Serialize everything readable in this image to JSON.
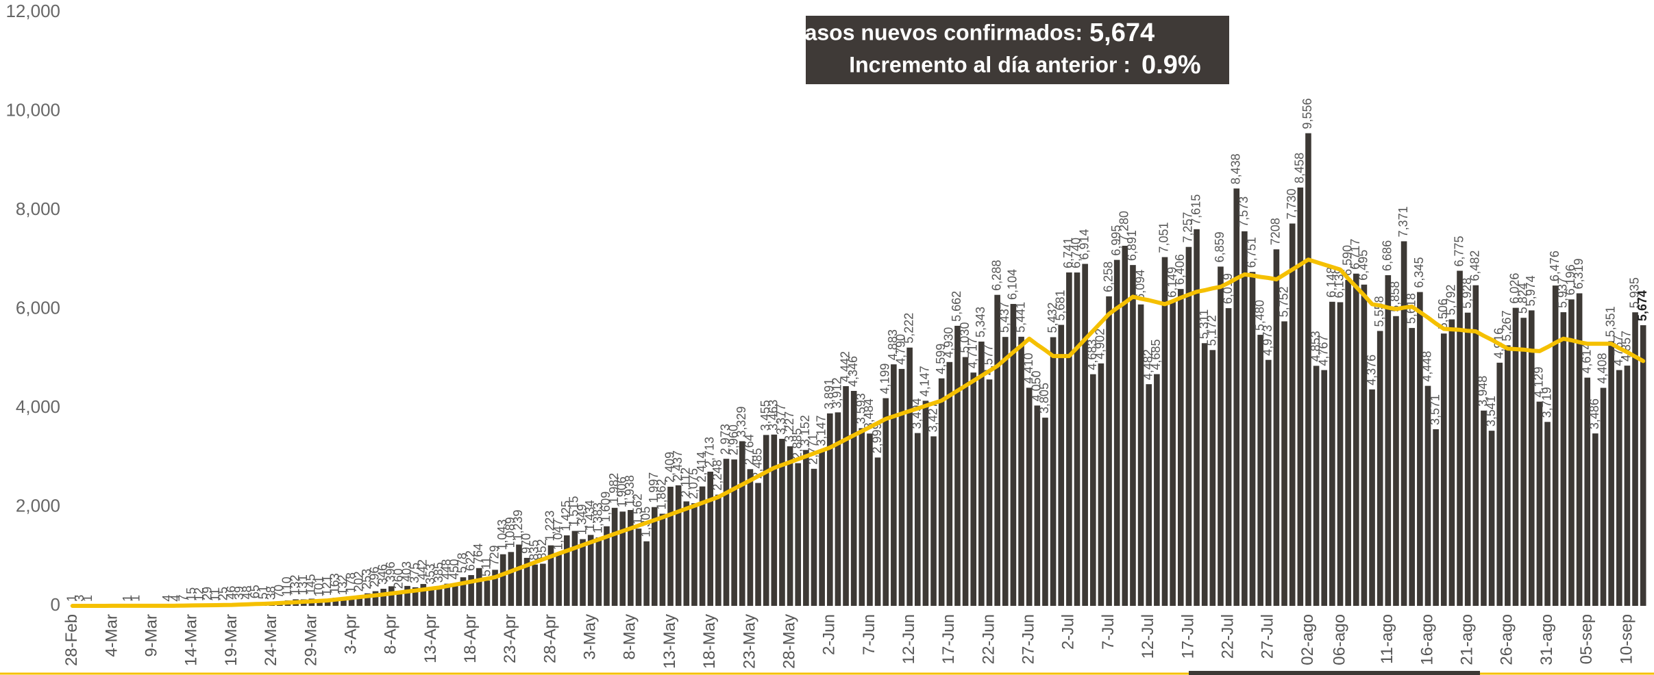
{
  "chart_data": {
    "type": "bar",
    "annotation": {
      "label1": "Casos nuevos confirmados:",
      "value1": "5,674",
      "label2": "Incremento al día anterior :",
      "value2": "0.9%"
    },
    "categories": [
      "28-Feb",
      null,
      null,
      null,
      null,
      "4-Mar",
      null,
      null,
      null,
      null,
      "9-Mar",
      null,
      null,
      null,
      null,
      "14-Mar",
      null,
      null,
      null,
      null,
      "19-Mar",
      null,
      null,
      null,
      null,
      "24-Mar",
      null,
      null,
      null,
      null,
      "29-Mar",
      null,
      null,
      null,
      null,
      "3-Apr",
      null,
      null,
      null,
      null,
      "8-Apr",
      null,
      null,
      null,
      null,
      "13-Apr",
      null,
      null,
      null,
      null,
      "18-Apr",
      null,
      null,
      null,
      null,
      "23-Apr",
      null,
      null,
      null,
      null,
      "28-Apr",
      null,
      null,
      null,
      null,
      "3-May",
      null,
      null,
      null,
      null,
      "8-May",
      null,
      null,
      null,
      null,
      "13-May",
      null,
      null,
      null,
      null,
      "18-May",
      null,
      null,
      null,
      null,
      "23-May",
      null,
      null,
      null,
      null,
      "28-May",
      null,
      null,
      null,
      null,
      "2-Jun",
      null,
      null,
      null,
      null,
      "7-Jun",
      null,
      null,
      null,
      null,
      "12-Jun",
      null,
      null,
      null,
      null,
      "17-Jun",
      null,
      null,
      null,
      null,
      "22-Jun",
      null,
      null,
      null,
      null,
      "27-Jun",
      null,
      null,
      null,
      null,
      "2-Jul",
      null,
      null,
      null,
      null,
      "7-Jul",
      null,
      null,
      null,
      null,
      "12-Jul",
      null,
      null,
      null,
      null,
      "17-Jul",
      null,
      null,
      null,
      null,
      "22-Jul",
      null,
      null,
      null,
      null,
      "27-Jul",
      null,
      null,
      null,
      null,
      "02-ago",
      null,
      null,
      null,
      "06-ago",
      null,
      null,
      null,
      null,
      null,
      "11-ago",
      null,
      null,
      null,
      null,
      "16-ago",
      null,
      null,
      null,
      null,
      "21-ago",
      null,
      null,
      null,
      null,
      "26-ago",
      null,
      null,
      null,
      null,
      "31-ago",
      null,
      null,
      null,
      null,
      "05-sep",
      null,
      null,
      null,
      null,
      "10-sep",
      null,
      null
    ],
    "series": [
      {
        "type": "bar",
        "color": "#3d3935",
        "values": [
          1,
          3,
          1,
          0,
          0,
          0,
          0,
          1,
          1,
          0,
          0,
          0,
          4,
          4,
          7,
          15,
          12,
          29,
          11,
          25,
          46,
          39,
          48,
          65,
          51,
          38,
          70,
          110,
          132,
          131,
          145,
          101,
          121,
          163,
          132,
          178,
          202,
          253,
          296,
          346,
          396,
          260,
          403,
          375,
          442,
          353,
          385,
          448,
          450,
          578,
          622,
          764,
          511,
          729,
          1043,
          1089,
          1239,
          970,
          835,
          852,
          1223,
          1047,
          1425,
          1515,
          1349,
          1434,
          1383,
          1609,
          1982,
          1906,
          1938,
          1562,
          1305,
          1997,
          1862,
          2409,
          2437,
          2112,
          2075,
          2414,
          2713,
          2248,
          2973,
          2960,
          3329,
          2764,
          2485,
          3455,
          3463,
          3377,
          3227,
          2885,
          3152,
          2771,
          3147,
          3891,
          3912,
          4442,
          4346,
          3593,
          3484,
          2999,
          4199,
          4883,
          4790,
          5222,
          3494,
          4147,
          3427,
          4599,
          4930,
          5662,
          5030,
          4717,
          5343,
          4577,
          6288,
          5437,
          6104,
          5441,
          4410,
          4050,
          3805,
          5432,
          5681,
          6741,
          6740,
          6914,
          4683,
          4902,
          6258,
          6995,
          7280,
          6891,
          6094,
          4482,
          4685,
          7051,
          6149,
          6406,
          7257,
          7615,
          5311,
          5172,
          6859,
          6019,
          8438,
          7573,
          6751,
          5480,
          4973,
          7208,
          5752,
          7730,
          8458,
          9556,
          4853,
          4767,
          6148,
          6139,
          6590,
          6717,
          6495,
          4376,
          5558,
          6686,
          5858,
          7371,
          5618,
          6345,
          4448,
          3571,
          5506,
          5792,
          6775,
          5928,
          6482,
          3948,
          3541,
          4916,
          5267,
          6026,
          5824,
          5974,
          4129,
          3719,
          6476,
          5937,
          6196,
          6319,
          4614,
          3486,
          4408,
          5351,
          4767,
          4857,
          5935,
          5674
        ],
        "value_labels": [
          "1",
          "3",
          "1",
          null,
          null,
          null,
          null,
          "1",
          "1",
          null,
          null,
          null,
          "4",
          "4",
          "7",
          "15",
          "12",
          "29",
          "11",
          "25",
          "46",
          "39",
          "48",
          "65",
          "51",
          "38",
          "70",
          "110",
          "132",
          "131",
          "145",
          "101",
          "121",
          "163",
          "132",
          "178",
          "202",
          "253",
          "296",
          "346",
          "396",
          "260",
          "403",
          "375",
          "442",
          "353",
          "385",
          "448",
          "450",
          "578",
          "622",
          "764",
          "511",
          "729",
          "1,043",
          "1,089",
          "1,239",
          "970",
          "835",
          "852",
          "1,223",
          "1,047",
          "1,425",
          "1,515",
          "1,349",
          "1,434",
          "1,383",
          "1,609",
          "1,982",
          "1,906",
          "1,938",
          "1,562",
          "1,305",
          "1,997",
          "1,862",
          "2,409",
          "2,437",
          "2,112",
          "2,075",
          "2,414",
          "2,713",
          "2,248",
          "2,973",
          "2,960",
          "3,329",
          "2,764",
          "2,485",
          "3,455",
          "3,463",
          "3,377",
          "3,227",
          "2,885",
          "3,152",
          "2,771",
          "3,147",
          "3,891",
          "3,912",
          "4,442",
          "4,346",
          "3,593",
          "3,484",
          "2,999",
          "4,199",
          "4,883",
          "4,790",
          "5,222",
          "3,494",
          "4,147",
          "3,427",
          "4,599",
          "4,930",
          "5,662",
          "5,030",
          "4,717",
          "5,343",
          "4,577",
          "6,288",
          "5,437",
          "6,104",
          "5,441",
          "4,410",
          "4,050",
          "3,805",
          "5,432",
          "5,681",
          "6,741",
          "6,740",
          "6,914",
          "4,683",
          "4,902",
          "6,258",
          "6,995",
          "7,280",
          "6,891",
          "6,094",
          "4,482",
          "4,685",
          "7,051",
          "6,149",
          "6,406",
          "7,257",
          "7,615",
          "5,311",
          "5,172",
          "6,859",
          "6,019",
          "8,438",
          "7,573",
          "6,751",
          "5,480",
          "4,973",
          "7208",
          "5,752",
          "7,730",
          "8,458",
          "9,556",
          "4,853",
          "4,767",
          "6,148",
          "6,139",
          "6,590",
          "6,717",
          "6,495",
          "4,376",
          "5,558",
          "6,686",
          "5,858",
          "7,371",
          "5,618",
          "6,345",
          "4,448",
          "3,571",
          "5,506",
          "5,792",
          "6,775",
          "5,928",
          "6,482",
          "3,948",
          "3,541",
          "4,916",
          "5,267",
          "6,026",
          "5,824",
          "5,974",
          "4,129",
          "3,719",
          "6,476",
          "5,937",
          "6,196",
          "6,319",
          "4,614",
          "3,486",
          "4,408",
          "5,351",
          "4,767",
          "4,857",
          "5,935",
          "5,674"
        ]
      },
      {
        "type": "line",
        "color": "#f5c000",
        "values": [
          0,
          0,
          0,
          0,
          0,
          1,
          1,
          1,
          1,
          1,
          1,
          2,
          2,
          3,
          5,
          8,
          10,
          12,
          14,
          17,
          20,
          26,
          31,
          37,
          42,
          48,
          57,
          66,
          74,
          83,
          92,
          101,
          110,
          127,
          144,
          161,
          179,
          196,
          213,
          230,
          250,
          270,
          290,
          310,
          330,
          350,
          370,
          400,
          430,
          460,
          490,
          520,
          550,
          580,
          640,
          700,
          760,
          820,
          880,
          940,
          1000,
          1057,
          1114,
          1171,
          1229,
          1286,
          1343,
          1400,
          1456,
          1511,
          1567,
          1623,
          1679,
          1734,
          1790,
          1849,
          1907,
          1966,
          2024,
          2083,
          2141,
          2200,
          2284,
          2369,
          2453,
          2537,
          2621,
          2706,
          2790,
          2849,
          2907,
          2966,
          3024,
          3083,
          3141,
          3200,
          3283,
          3366,
          3449,
          3531,
          3614,
          3697,
          3780,
          3833,
          3886,
          3939,
          3991,
          4044,
          4097,
          4150,
          4250,
          4350,
          4450,
          4550,
          4650,
          4750,
          4850,
          4990,
          5130,
          5260,
          5400,
          5280,
          5170,
          5050,
          5050,
          5050,
          5220,
          5390,
          5560,
          5730,
          5900,
          6020,
          6130,
          6250,
          6210,
          6180,
          6140,
          6100,
          6160,
          6230,
          6290,
          6350,
          6380,
          6420,
          6450,
          6530,
          6620,
          6700,
          6680,
          6650,
          6630,
          6600,
          6700,
          6800,
          6900,
          7000,
          6950,
          6900,
          6850,
          6800,
          6620,
          6450,
          6280,
          6100,
          6070,
          6030,
          6000,
          6030,
          6050,
          5940,
          5830,
          5710,
          5600,
          5590,
          5580,
          5560,
          5550,
          5460,
          5380,
          5290,
          5200,
          5190,
          5180,
          5160,
          5150,
          5230,
          5320,
          5400,
          5370,
          5330,
          5300,
          5300,
          5300,
          5300,
          5210,
          5130,
          5040,
          4950
        ]
      }
    ],
    "ylim": [
      0,
      12000
    ],
    "yticks": [
      0,
      {
        "value": 2000,
        "label": "2,000"
      },
      {
        "value": 4000,
        "label": "4,000"
      },
      {
        "value": 6000,
        "label": "6,000"
      },
      {
        "value": 8000,
        "label": "8,000"
      },
      {
        "value": 10000,
        "label": "10,000"
      },
      {
        "value": 12000,
        "label": "12,000"
      }
    ],
    "grid": false
  }
}
